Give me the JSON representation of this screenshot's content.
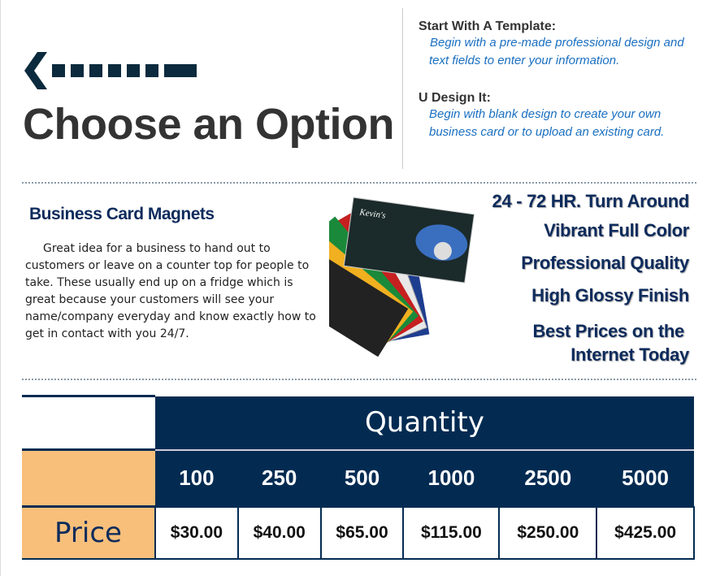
{
  "header": {
    "title": "Choose an Option",
    "arrow_icon": "left-arrow-dashed-icon"
  },
  "options": [
    {
      "heading": "Start With A Template",
      "text_lines": [
        "Begin with a pre-made professional design and",
        "text fields to enter your information."
      ]
    },
    {
      "heading": "U Design It",
      "text_lines": [
        "Begin with blank design to create your own",
        "business card or to upload an existing card."
      ]
    }
  ],
  "product": {
    "name": "Business Card Magnets",
    "description": "Great idea for a business to hand out to customers or leave on a counter top for people to take. These usually end up on a fridge which is great because your customers will see your name/company everyday and know exactly how to get in contact with you 24/7.",
    "image": "business-card-magnets-fan-image"
  },
  "features": [
    "24 - 72 HR. Turn Around",
    "Vibrant Full Color",
    "Professional Quality",
    "High Glossy Finish",
    "Best Prices on the",
    "Internet Today"
  ],
  "pricing": {
    "quantity_label": "Quantity",
    "price_label": "Price",
    "quantities": [
      "100",
      "250",
      "500",
      "1000",
      "2500",
      "5000"
    ],
    "prices": [
      "$30.00",
      "$40.00",
      "$65.00",
      "$115.00",
      "$250.00",
      "$425.00"
    ]
  },
  "colors": {
    "navy": "#032b52",
    "orange": "#f8bf7a",
    "link_blue": "#1a6fc0"
  }
}
